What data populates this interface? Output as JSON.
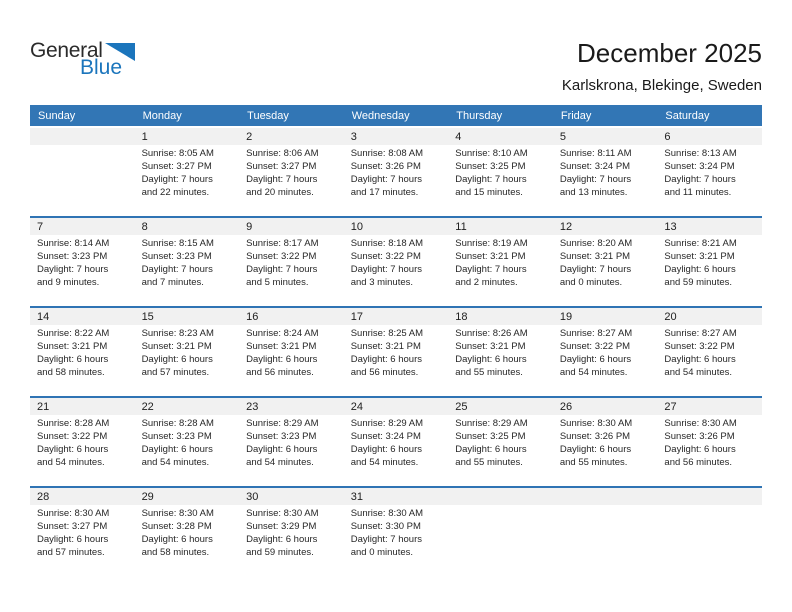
{
  "logo": {
    "part1": "General",
    "part2": "Blue"
  },
  "header": {
    "title": "December 2025",
    "subtitle": "Karlskrona, Blekinge, Sweden"
  },
  "colors": {
    "header_bg": "#3276b5",
    "week_separator": "#2f74b4",
    "number_strip_bg": "#f1f1f1",
    "logo_blue": "#1b75bc",
    "text": "#272727"
  },
  "day_headers": [
    "Sunday",
    "Monday",
    "Tuesday",
    "Wednesday",
    "Thursday",
    "Friday",
    "Saturday"
  ],
  "weeks": [
    {
      "days": [
        {
          "date": "",
          "lines": []
        },
        {
          "date": "1",
          "lines": [
            "Sunrise: 8:05 AM",
            "Sunset: 3:27 PM",
            "Daylight: 7 hours",
            "and 22 minutes."
          ]
        },
        {
          "date": "2",
          "lines": [
            "Sunrise: 8:06 AM",
            "Sunset: 3:27 PM",
            "Daylight: 7 hours",
            "and 20 minutes."
          ]
        },
        {
          "date": "3",
          "lines": [
            "Sunrise: 8:08 AM",
            "Sunset: 3:26 PM",
            "Daylight: 7 hours",
            "and 17 minutes."
          ]
        },
        {
          "date": "4",
          "lines": [
            "Sunrise: 8:10 AM",
            "Sunset: 3:25 PM",
            "Daylight: 7 hours",
            "and 15 minutes."
          ]
        },
        {
          "date": "5",
          "lines": [
            "Sunrise: 8:11 AM",
            "Sunset: 3:24 PM",
            "Daylight: 7 hours",
            "and 13 minutes."
          ]
        },
        {
          "date": "6",
          "lines": [
            "Sunrise: 8:13 AM",
            "Sunset: 3:24 PM",
            "Daylight: 7 hours",
            "and 11 minutes."
          ]
        }
      ]
    },
    {
      "days": [
        {
          "date": "7",
          "lines": [
            "Sunrise: 8:14 AM",
            "Sunset: 3:23 PM",
            "Daylight: 7 hours",
            "and 9 minutes."
          ]
        },
        {
          "date": "8",
          "lines": [
            "Sunrise: 8:15 AM",
            "Sunset: 3:23 PM",
            "Daylight: 7 hours",
            "and 7 minutes."
          ]
        },
        {
          "date": "9",
          "lines": [
            "Sunrise: 8:17 AM",
            "Sunset: 3:22 PM",
            "Daylight: 7 hours",
            "and 5 minutes."
          ]
        },
        {
          "date": "10",
          "lines": [
            "Sunrise: 8:18 AM",
            "Sunset: 3:22 PM",
            "Daylight: 7 hours",
            "and 3 minutes."
          ]
        },
        {
          "date": "11",
          "lines": [
            "Sunrise: 8:19 AM",
            "Sunset: 3:21 PM",
            "Daylight: 7 hours",
            "and 2 minutes."
          ]
        },
        {
          "date": "12",
          "lines": [
            "Sunrise: 8:20 AM",
            "Sunset: 3:21 PM",
            "Daylight: 7 hours",
            "and 0 minutes."
          ]
        },
        {
          "date": "13",
          "lines": [
            "Sunrise: 8:21 AM",
            "Sunset: 3:21 PM",
            "Daylight: 6 hours",
            "and 59 minutes."
          ]
        }
      ]
    },
    {
      "days": [
        {
          "date": "14",
          "lines": [
            "Sunrise: 8:22 AM",
            "Sunset: 3:21 PM",
            "Daylight: 6 hours",
            "and 58 minutes."
          ]
        },
        {
          "date": "15",
          "lines": [
            "Sunrise: 8:23 AM",
            "Sunset: 3:21 PM",
            "Daylight: 6 hours",
            "and 57 minutes."
          ]
        },
        {
          "date": "16",
          "lines": [
            "Sunrise: 8:24 AM",
            "Sunset: 3:21 PM",
            "Daylight: 6 hours",
            "and 56 minutes."
          ]
        },
        {
          "date": "17",
          "lines": [
            "Sunrise: 8:25 AM",
            "Sunset: 3:21 PM",
            "Daylight: 6 hours",
            "and 56 minutes."
          ]
        },
        {
          "date": "18",
          "lines": [
            "Sunrise: 8:26 AM",
            "Sunset: 3:21 PM",
            "Daylight: 6 hours",
            "and 55 minutes."
          ]
        },
        {
          "date": "19",
          "lines": [
            "Sunrise: 8:27 AM",
            "Sunset: 3:22 PM",
            "Daylight: 6 hours",
            "and 54 minutes."
          ]
        },
        {
          "date": "20",
          "lines": [
            "Sunrise: 8:27 AM",
            "Sunset: 3:22 PM",
            "Daylight: 6 hours",
            "and 54 minutes."
          ]
        }
      ]
    },
    {
      "days": [
        {
          "date": "21",
          "lines": [
            "Sunrise: 8:28 AM",
            "Sunset: 3:22 PM",
            "Daylight: 6 hours",
            "and 54 minutes."
          ]
        },
        {
          "date": "22",
          "lines": [
            "Sunrise: 8:28 AM",
            "Sunset: 3:23 PM",
            "Daylight: 6 hours",
            "and 54 minutes."
          ]
        },
        {
          "date": "23",
          "lines": [
            "Sunrise: 8:29 AM",
            "Sunset: 3:23 PM",
            "Daylight: 6 hours",
            "and 54 minutes."
          ]
        },
        {
          "date": "24",
          "lines": [
            "Sunrise: 8:29 AM",
            "Sunset: 3:24 PM",
            "Daylight: 6 hours",
            "and 54 minutes."
          ]
        },
        {
          "date": "25",
          "lines": [
            "Sunrise: 8:29 AM",
            "Sunset: 3:25 PM",
            "Daylight: 6 hours",
            "and 55 minutes."
          ]
        },
        {
          "date": "26",
          "lines": [
            "Sunrise: 8:30 AM",
            "Sunset: 3:26 PM",
            "Daylight: 6 hours",
            "and 55 minutes."
          ]
        },
        {
          "date": "27",
          "lines": [
            "Sunrise: 8:30 AM",
            "Sunset: 3:26 PM",
            "Daylight: 6 hours",
            "and 56 minutes."
          ]
        }
      ]
    },
    {
      "days": [
        {
          "date": "28",
          "lines": [
            "Sunrise: 8:30 AM",
            "Sunset: 3:27 PM",
            "Daylight: 6 hours",
            "and 57 minutes."
          ]
        },
        {
          "date": "29",
          "lines": [
            "Sunrise: 8:30 AM",
            "Sunset: 3:28 PM",
            "Daylight: 6 hours",
            "and 58 minutes."
          ]
        },
        {
          "date": "30",
          "lines": [
            "Sunrise: 8:30 AM",
            "Sunset: 3:29 PM",
            "Daylight: 6 hours",
            "and 59 minutes."
          ]
        },
        {
          "date": "31",
          "lines": [
            "Sunrise: 8:30 AM",
            "Sunset: 3:30 PM",
            "Daylight: 7 hours",
            "and 0 minutes."
          ]
        },
        {
          "date": "",
          "lines": []
        },
        {
          "date": "",
          "lines": []
        },
        {
          "date": "",
          "lines": []
        }
      ]
    }
  ]
}
